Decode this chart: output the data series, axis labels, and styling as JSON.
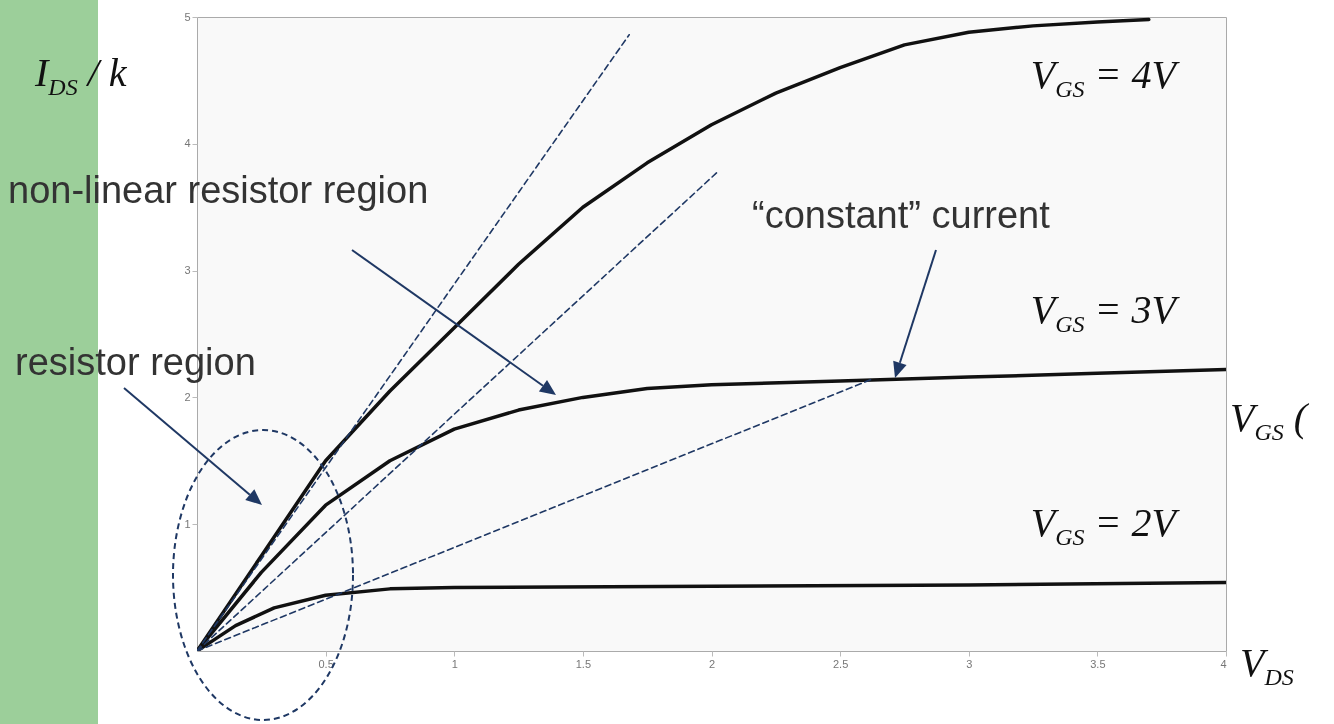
{
  "chart_data": {
    "type": "line",
    "xlabel": "V$_{DS}$",
    "ylabel": "I$_{DS}$ / k",
    "xlim": [
      0,
      4
    ],
    "ylim": [
      0,
      5
    ],
    "xticks": [
      0.5,
      1,
      1.5,
      2,
      2.5,
      3,
      3.5,
      4
    ],
    "yticks": [
      1,
      2,
      3,
      4,
      5
    ],
    "grid": false,
    "marker": "none",
    "series": [
      {
        "name": "V$_{GS}$ = 4V",
        "color": "#111111",
        "line_style": "solid",
        "x": [
          0,
          0.25,
          0.5,
          0.75,
          1,
          1.25,
          1.5,
          1.75,
          2,
          2.25,
          2.5,
          2.75,
          3,
          3.25,
          3.5,
          3.7
        ],
        "values": [
          0,
          0.75,
          1.5,
          2.05,
          2.55,
          3.05,
          3.5,
          3.85,
          4.15,
          4.4,
          4.6,
          4.78,
          4.88,
          4.93,
          4.96,
          4.98
        ]
      },
      {
        "name": "V$_{GS}$ = 3V",
        "color": "#111111",
        "line_style": "solid",
        "x": [
          0,
          0.25,
          0.5,
          0.75,
          1,
          1.25,
          1.5,
          1.75,
          2,
          2.5,
          3,
          3.5,
          4
        ],
        "values": [
          0,
          0.62,
          1.15,
          1.5,
          1.75,
          1.9,
          2.0,
          2.07,
          2.1,
          2.13,
          2.16,
          2.19,
          2.22
        ]
      },
      {
        "name": "V$_{GS}$ = 2V",
        "color": "#111111",
        "line_style": "solid",
        "x": [
          0,
          0.15,
          0.3,
          0.5,
          0.75,
          1,
          2,
          3,
          4
        ],
        "values": [
          0,
          0.2,
          0.34,
          0.44,
          0.49,
          0.5,
          0.51,
          0.52,
          0.54
        ]
      },
      {
        "color": "#1f3864",
        "line_style": "dashed",
        "x": [
          0,
          1.68
        ],
        "values": [
          0,
          4.86
        ]
      },
      {
        "color": "#1f3864",
        "line_style": "dashed",
        "x": [
          0,
          2.03
        ],
        "values": [
          0,
          3.79
        ]
      },
      {
        "color": "#1f3864",
        "line_style": "dashed",
        "x": [
          0,
          2.62
        ],
        "values": [
          0,
          2.14
        ]
      }
    ],
    "annotations": [
      "non-linear resistor region",
      "resistor region",
      "“constant” current",
      "V$_{GS}$ ("
    ]
  }
}
